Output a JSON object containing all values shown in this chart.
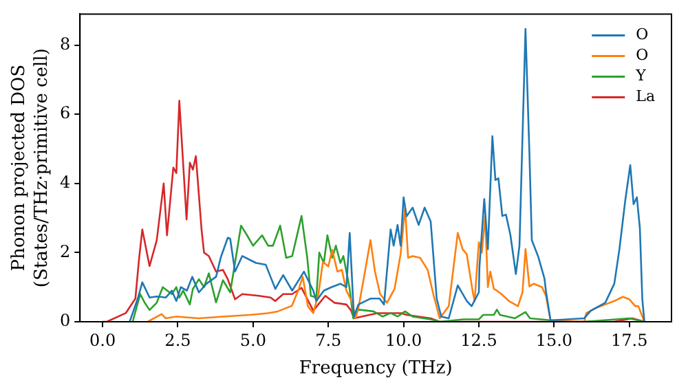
{
  "chart_data": {
    "type": "line",
    "xlabel": "Frequency (THz)",
    "ylabel": "Phonon projected DOS\n(States/THz·primitive cell)",
    "xlim": [
      -0.75,
      18.9
    ],
    "ylim": [
      0,
      8.9
    ],
    "xticks": [
      {
        "value": 0,
        "label": "0.0"
      },
      {
        "value": 2.5,
        "label": "2.5"
      },
      {
        "value": 5,
        "label": "5.0"
      },
      {
        "value": 7.5,
        "label": "7.5"
      },
      {
        "value": 10,
        "label": "10.0"
      },
      {
        "value": 12.5,
        "label": "12.5"
      },
      {
        "value": 15,
        "label": "15.0"
      },
      {
        "value": 17.5,
        "label": "17.5"
      }
    ],
    "yticks": [
      0,
      2,
      4,
      6,
      8
    ],
    "grid": false,
    "legend": "top right",
    "marker": "none",
    "line_style": "solid",
    "series": [
      {
        "name": "O",
        "color": "#1f77b4",
        "x": [
          0.9,
          1.17,
          1.32,
          1.56,
          1.8,
          2.1,
          2.3,
          2.45,
          2.6,
          2.8,
          2.98,
          3.2,
          3.45,
          3.77,
          3.93,
          4.16,
          4.24,
          4.4,
          4.64,
          4.87,
          5.1,
          5.42,
          5.58,
          5.74,
          6.0,
          6.3,
          6.69,
          7.0,
          7.1,
          7.35,
          7.6,
          7.9,
          8.1,
          8.21,
          8.35,
          8.5,
          8.9,
          9.2,
          9.35,
          9.57,
          9.67,
          9.8,
          9.9,
          10.0,
          10.1,
          10.3,
          10.5,
          10.7,
          10.9,
          11.1,
          11.25,
          11.5,
          11.8,
          12.1,
          12.26,
          12.5,
          12.52,
          12.68,
          12.8,
          12.95,
          13.05,
          13.15,
          13.28,
          13.4,
          13.55,
          13.73,
          13.85,
          14.05,
          14.18,
          14.26,
          14.47,
          14.68,
          14.73,
          14.88,
          16.0,
          16.22,
          16.7,
          17.0,
          17.17,
          17.36,
          17.53,
          17.64,
          17.75,
          17.85,
          17.93,
          18.0
        ],
        "values": [
          0,
          0.67,
          1.14,
          0.7,
          0.73,
          0.7,
          0.9,
          0.6,
          1.0,
          0.9,
          1.3,
          0.85,
          1.1,
          1.3,
          1.87,
          2.43,
          2.4,
          1.45,
          1.9,
          1.8,
          1.7,
          1.65,
          1.3,
          0.95,
          1.35,
          0.9,
          1.45,
          0.9,
          0.6,
          0.9,
          1.0,
          1.1,
          1.0,
          2.57,
          0.15,
          0.5,
          0.67,
          0.67,
          0.5,
          2.67,
          2.2,
          2.8,
          2.2,
          3.6,
          3.05,
          3.3,
          2.8,
          3.3,
          2.9,
          0.67,
          0.15,
          0.1,
          1.05,
          0.6,
          0.45,
          0.85,
          1.59,
          3.55,
          2.1,
          5.37,
          4.1,
          4.15,
          3.06,
          3.1,
          2.5,
          1.38,
          2.2,
          8.47,
          4.88,
          2.36,
          1.89,
          1.25,
          0.88,
          0.04,
          0.1,
          0.32,
          0.55,
          1.1,
          2.1,
          3.48,
          4.53,
          3.4,
          3.6,
          2.7,
          0.67,
          0
        ]
      },
      {
        "name": "O",
        "color": "#ff7f0e",
        "x": [
          1.5,
          1.96,
          2.1,
          2.45,
          3.2,
          4.0,
          4.9,
          5.5,
          5.82,
          6.29,
          6.52,
          6.65,
          6.82,
          7.0,
          7.17,
          7.32,
          7.5,
          7.63,
          7.8,
          7.95,
          8.1,
          8.3,
          8.4,
          8.5,
          8.66,
          8.9,
          9.05,
          9.22,
          9.45,
          9.7,
          9.9,
          10.05,
          10.15,
          10.3,
          10.55,
          10.8,
          11.0,
          11.2,
          11.5,
          11.8,
          11.96,
          12.1,
          12.3,
          12.36,
          12.5,
          12.6,
          12.71,
          12.8,
          12.88,
          13.0,
          13.1,
          13.25,
          13.5,
          13.8,
          13.95,
          14.05,
          14.18,
          14.33,
          14.6,
          14.73,
          14.88,
          16.0,
          16.07,
          16.4,
          16.7,
          17.0,
          17.28,
          17.5,
          17.7,
          17.8,
          18.0
        ],
        "values": [
          0,
          0.22,
          0.1,
          0.15,
          0.1,
          0.15,
          0.2,
          0.25,
          0.3,
          0.46,
          0.95,
          1.3,
          0.45,
          0.25,
          0.8,
          1.73,
          1.6,
          2.08,
          1.45,
          1.5,
          0.9,
          0.55,
          0.1,
          0.4,
          1.17,
          2.36,
          1.45,
          0.8,
          0.55,
          0.95,
          1.95,
          3.3,
          1.85,
          1.9,
          1.85,
          1.5,
          0.75,
          0.1,
          0.45,
          2.57,
          2.1,
          1.95,
          0.85,
          0.6,
          2.3,
          2.0,
          3.06,
          1.0,
          1.45,
          0.95,
          0.9,
          0.8,
          0.6,
          0.45,
          0.85,
          2.1,
          1.02,
          1.1,
          1.0,
          0.75,
          0.05,
          0,
          0.25,
          0.4,
          0.5,
          0.6,
          0.72,
          0.65,
          0.45,
          0.45,
          0
        ]
      },
      {
        "name": "Y",
        "color": "#2ca02c",
        "x": [
          1.0,
          1.25,
          1.4,
          1.56,
          1.8,
          2.0,
          2.3,
          2.45,
          2.55,
          2.68,
          2.9,
          3.0,
          3.2,
          3.37,
          3.53,
          3.77,
          4.0,
          4.24,
          4.6,
          4.8,
          5.0,
          5.3,
          5.5,
          5.66,
          5.9,
          6.1,
          6.3,
          6.61,
          6.8,
          6.92,
          7.1,
          7.2,
          7.35,
          7.47,
          7.63,
          7.75,
          7.9,
          8.0,
          8.2,
          8.33,
          8.5,
          9.0,
          9.3,
          9.57,
          9.8,
          10.05,
          10.3,
          10.9,
          11.2,
          12.0,
          12.5,
          12.65,
          13.0,
          13.1,
          13.2,
          13.7,
          14.05,
          14.2,
          14.8,
          14.9,
          16.0,
          17.5,
          18.0
        ],
        "values": [
          0,
          0.8,
          0.55,
          0.34,
          0.55,
          1.0,
          0.8,
          1.0,
          0.7,
          0.9,
          0.5,
          0.95,
          1.23,
          1.0,
          1.4,
          0.56,
          1.2,
          0.85,
          2.78,
          2.5,
          2.2,
          2.5,
          2.2,
          2.2,
          2.78,
          1.85,
          1.9,
          3.06,
          1.85,
          0.75,
          0.7,
          2.0,
          1.7,
          2.5,
          1.85,
          2.2,
          1.7,
          1.9,
          1.0,
          0.1,
          0.35,
          0.3,
          0.15,
          0.25,
          0.15,
          0.3,
          0.15,
          0.07,
          0,
          0.07,
          0.07,
          0.2,
          0.2,
          0.35,
          0.2,
          0.1,
          0.28,
          0.1,
          0.05,
          0,
          0,
          0.1,
          0
        ]
      },
      {
        "name": "La",
        "color": "#d62728",
        "x": [
          0,
          0.14,
          0.77,
          1.09,
          1.21,
          1.32,
          1.56,
          1.8,
          2.03,
          2.14,
          2.35,
          2.45,
          2.55,
          2.79,
          2.9,
          3.0,
          3.1,
          3.29,
          3.37,
          3.53,
          3.77,
          4.0,
          4.16,
          4.4,
          4.64,
          5.19,
          5.58,
          5.74,
          6.0,
          6.3,
          6.61,
          7.0,
          7.4,
          7.7,
          8.1,
          8.26,
          8.35,
          9.13,
          9.92,
          10.1,
          10.9,
          11.2,
          17.0,
          17.6,
          18.0
        ],
        "values": [
          0,
          0,
          0.25,
          0.67,
          1.8,
          2.67,
          1.61,
          2.36,
          4.0,
          2.5,
          4.46,
          4.3,
          6.39,
          2.96,
          4.6,
          4.4,
          4.79,
          2.65,
          2.0,
          1.9,
          1.45,
          1.5,
          1.23,
          0.65,
          0.8,
          0.75,
          0.7,
          0.6,
          0.8,
          0.8,
          0.98,
          0.32,
          0.75,
          0.55,
          0.5,
          0.32,
          0.1,
          0.25,
          0.25,
          0.2,
          0.1,
          0,
          0,
          0.1,
          0
        ]
      }
    ]
  }
}
